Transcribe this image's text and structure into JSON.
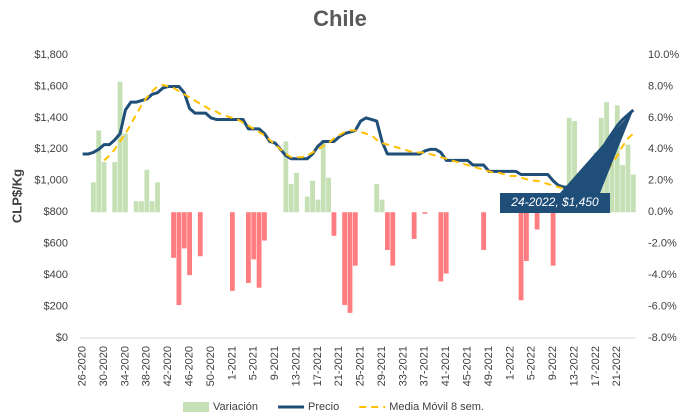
{
  "chart_data": {
    "type": "bar-line",
    "title": "Chile",
    "y_label": "CLP$/Kg",
    "annotation": "24-2022, $1,450",
    "legend": "bottom",
    "categories": [
      "26-2020",
      null,
      null,
      null,
      "30-2020",
      null,
      null,
      null,
      "34-2020",
      null,
      null,
      null,
      "38-2020",
      null,
      null,
      null,
      "42-2020",
      null,
      null,
      null,
      "46-2020",
      null,
      null,
      null,
      "50-2020",
      null,
      null,
      null,
      "1-2021",
      null,
      null,
      null,
      "5-2021",
      null,
      null,
      null,
      "9-2021",
      null,
      null,
      null,
      "13-2021",
      null,
      null,
      null,
      "17-2021",
      null,
      null,
      null,
      "21-2021",
      null,
      null,
      null,
      "25-2021",
      null,
      null,
      null,
      "29-2021",
      null,
      null,
      null,
      "33-2021",
      null,
      null,
      null,
      "37-2021",
      null,
      null,
      null,
      "41-2021",
      null,
      null,
      null,
      "45-2021",
      null,
      null,
      null,
      "49-2021",
      null,
      null,
      null,
      "1-2022",
      null,
      null,
      null,
      "5-2022",
      null,
      null,
      null,
      "9-2022",
      null,
      null,
      null,
      "13-2022",
      null,
      null,
      null,
      "17-2022",
      null,
      null,
      null,
      "21-2022",
      null,
      null,
      null
    ],
    "ylim": [
      0,
      1800
    ],
    "yticks": [
      {
        "value": 0,
        "label": "$0"
      },
      {
        "value": 200,
        "label": "$200"
      },
      {
        "value": 400,
        "label": "$400"
      },
      {
        "value": 600,
        "label": "$600"
      },
      {
        "value": 800,
        "label": "$800"
      },
      {
        "value": 1000,
        "label": "$1,000"
      },
      {
        "value": 1200,
        "label": "$1,200"
      },
      {
        "value": 1400,
        "label": "$1,400"
      },
      {
        "value": 1600,
        "label": "$1,600"
      },
      {
        "value": 1800,
        "label": "$1,800"
      }
    ],
    "y2lim": [
      -8,
      10
    ],
    "y2ticks": [
      {
        "value": -8,
        "label": "-8.0%"
      },
      {
        "value": -6,
        "label": "-6.0%"
      },
      {
        "value": -4,
        "label": "-4.0%"
      },
      {
        "value": -2,
        "label": "-2.0%"
      },
      {
        "value": 0,
        "label": "0.0%"
      },
      {
        "value": 2,
        "label": "2.0%"
      },
      {
        "value": 4,
        "label": "4.0%"
      },
      {
        "value": 6,
        "label": "6.0%"
      },
      {
        "value": 8,
        "label": "8.0%"
      },
      {
        "value": 10,
        "label": "10.0%"
      }
    ],
    "series": [
      {
        "name": "Variación",
        "type": "bar",
        "axis": "y2",
        "color": "#c5e0b4",
        "negative_color": "#ff7c80",
        "values": [
          0,
          0,
          1.9,
          5.2,
          3.2,
          0,
          3.2,
          8.3,
          5.0,
          0,
          0.7,
          0.7,
          2.7,
          0.7,
          1.9,
          0,
          0,
          -2.9,
          -5.9,
          -2.3,
          -4.0,
          0,
          -2.8,
          0,
          0,
          0,
          0,
          0,
          -5.0,
          0,
          0,
          -4.5,
          -3.0,
          -4.8,
          -1.8,
          0,
          0,
          0,
          4.5,
          1.8,
          2.5,
          0,
          1.0,
          2.0,
          0.8,
          4.6,
          2.2,
          -1.5,
          0,
          -5.9,
          -6.4,
          -3.4,
          0,
          0,
          0,
          1.8,
          0.8,
          -2.4,
          -3.4,
          0,
          0,
          0,
          -1.7,
          0,
          -0.1,
          0,
          0,
          -4.4,
          -3.9,
          0,
          0,
          0,
          0,
          0,
          0,
          -2.4,
          0,
          0,
          0,
          0,
          0,
          0,
          -5.6,
          -3.1,
          0,
          -1.1,
          0,
          0,
          -3.4,
          0,
          0,
          6.0,
          5.8,
          0,
          0,
          2.5,
          3.8,
          6.0,
          7.0,
          4.9,
          6.8,
          3.0,
          4.3,
          2.4
        ]
      },
      {
        "name": "Precio",
        "type": "line",
        "color": "#1f4e79",
        "dash": false,
        "values": [
          1170,
          1170,
          1180,
          1200,
          1230,
          1230,
          1260,
          1300,
          1450,
          1500,
          1500,
          1510,
          1520,
          1550,
          1560,
          1590,
          1600,
          1600,
          1600,
          1560,
          1460,
          1430,
          1430,
          1430,
          1400,
          1390,
          1390,
          1390,
          1390,
          1390,
          1390,
          1330,
          1330,
          1330,
          1300,
          1250,
          1240,
          1200,
          1160,
          1140,
          1140,
          1140,
          1140,
          1170,
          1220,
          1250,
          1250,
          1250,
          1280,
          1300,
          1310,
          1320,
          1380,
          1400,
          1390,
          1380,
          1250,
          1170,
          1170,
          1170,
          1170,
          1170,
          1170,
          1170,
          1190,
          1200,
          1200,
          1180,
          1130,
          1130,
          1130,
          1130,
          1130,
          1100,
          1100,
          1100,
          1060,
          1060,
          1060,
          1060,
          1060,
          1060,
          1040,
          1040,
          1040,
          1040,
          1040,
          1040,
          1000,
          970,
          960,
          960,
          960,
          960,
          1000,
          1060,
          1130,
          1190,
          1250,
          1300,
          1350,
          1390,
          1420,
          1450
        ]
      },
      {
        "name": "Media Móvil 8 sem.",
        "type": "line",
        "color": "#ffc000",
        "dash": true,
        "values": [
          null,
          null,
          null,
          null,
          1130,
          1160,
          1200,
          1250,
          1300,
          1360,
          1420,
          1480,
          1530,
          1570,
          1600,
          1610,
          1600,
          1590,
          1570,
          1550,
          1530,
          1510,
          1490,
          1470,
          1450,
          1440,
          1420,
          1410,
          1400,
          1390,
          1370,
          1350,
          1330,
          1310,
          1290,
          1260,
          1230,
          1200,
          1170,
          1150,
          1150,
          1150,
          1160,
          1180,
          1200,
          1220,
          1240,
          1270,
          1290,
          1310,
          1320,
          1320,
          1310,
          1300,
          1290,
          1260,
          1240,
          1230,
          1220,
          1210,
          1200,
          1190,
          1180,
          1180,
          1180,
          1170,
          1160,
          1150,
          1140,
          1130,
          1120,
          1110,
          1100,
          1090,
          1080,
          1070,
          1060,
          1050,
          1050,
          1040,
          1030,
          1030,
          1020,
          1010,
          1000,
          1000,
          990,
          980,
          970,
          960,
          950,
          940,
          940,
          940,
          950,
          970,
          990,
          1020,
          1060,
          1110,
          1160,
          1220,
          1270,
          1300
        ]
      }
    ]
  }
}
